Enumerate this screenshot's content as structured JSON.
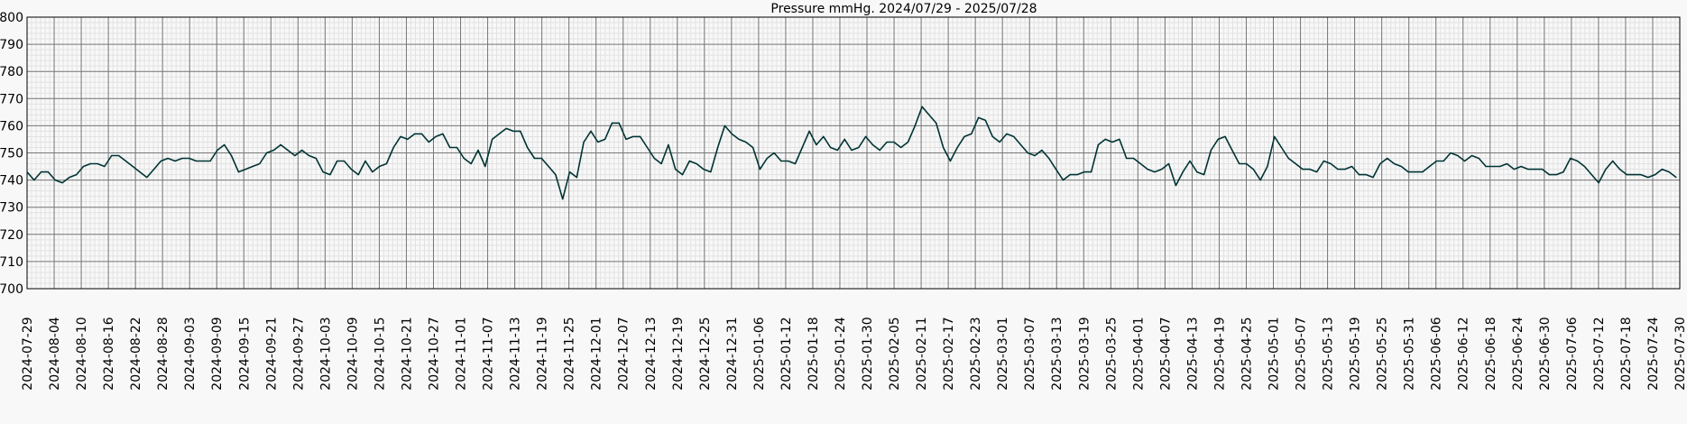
{
  "chart_data": {
    "type": "line",
    "title": "Pressure mmHg. 2024/07/29 - 2025/07/28",
    "xlabel": "",
    "ylabel": "",
    "ylim": [
      700,
      800
    ],
    "yticks": [
      700,
      710,
      720,
      730,
      740,
      750,
      760,
      770,
      780,
      790,
      800
    ],
    "grid": true,
    "line_color": "#003333",
    "x_tick_labels": [
      "2024-07-29",
      "2024-08-04",
      "2024-08-10",
      "2024-08-16",
      "2024-08-22",
      "2024-08-28",
      "2024-09-03",
      "2024-09-09",
      "2024-09-15",
      "2024-09-21",
      "2024-09-27",
      "2024-10-03",
      "2024-10-09",
      "2024-10-15",
      "2024-10-21",
      "2024-10-27",
      "2024-11-01",
      "2024-11-07",
      "2024-11-13",
      "2024-11-19",
      "2024-11-25",
      "2024-12-01",
      "2024-12-07",
      "2024-12-13",
      "2024-12-19",
      "2024-12-25",
      "2024-12-31",
      "2025-01-06",
      "2025-01-12",
      "2025-01-18",
      "2025-01-24",
      "2025-01-30",
      "2025-02-05",
      "2025-02-11",
      "2025-02-17",
      "2025-02-23",
      "2025-03-01",
      "2025-03-07",
      "2025-03-13",
      "2025-03-19",
      "2025-03-25",
      "2025-04-01",
      "2025-04-07",
      "2025-04-13",
      "2025-04-19",
      "2025-04-25",
      "2025-05-01",
      "2025-05-07",
      "2025-05-13",
      "2025-05-19",
      "2025-05-25",
      "2025-05-31",
      "2025-06-06",
      "2025-06-12",
      "2025-06-18",
      "2025-06-24",
      "2025-06-30",
      "2025-07-06",
      "2025-07-12",
      "2025-07-18",
      "2025-07-24",
      "2025-07-30"
    ],
    "series": [
      {
        "values": [
          [
            0,
            743
          ],
          [
            1,
            740
          ],
          [
            2,
            743
          ],
          [
            3,
            743
          ],
          [
            4,
            740
          ],
          [
            5,
            739
          ],
          [
            6,
            741
          ],
          [
            7,
            742
          ],
          [
            8,
            745
          ],
          [
            9,
            746
          ],
          [
            10,
            746
          ],
          [
            11,
            745
          ],
          [
            12,
            749
          ],
          [
            13,
            749
          ],
          [
            14,
            747
          ],
          [
            15,
            745
          ],
          [
            16,
            743
          ],
          [
            17,
            741
          ],
          [
            18,
            744
          ],
          [
            19,
            747
          ],
          [
            20,
            748
          ],
          [
            21,
            747
          ],
          [
            22,
            748
          ],
          [
            23,
            748
          ],
          [
            24,
            747
          ],
          [
            25,
            747
          ],
          [
            26,
            747
          ],
          [
            27,
            751
          ],
          [
            28,
            753
          ],
          [
            29,
            749
          ],
          [
            30,
            743
          ],
          [
            31,
            744
          ],
          [
            32,
            745
          ],
          [
            33,
            746
          ],
          [
            34,
            750
          ],
          [
            35,
            751
          ],
          [
            36,
            753
          ],
          [
            37,
            751
          ],
          [
            38,
            749
          ],
          [
            39,
            751
          ],
          [
            40,
            749
          ],
          [
            41,
            748
          ],
          [
            42,
            743
          ],
          [
            43,
            742
          ],
          [
            44,
            747
          ],
          [
            45,
            747
          ],
          [
            46,
            744
          ],
          [
            47,
            742
          ],
          [
            48,
            747
          ],
          [
            49,
            743
          ],
          [
            50,
            745
          ],
          [
            51,
            746
          ],
          [
            52,
            752
          ],
          [
            53,
            756
          ],
          [
            54,
            755
          ],
          [
            55,
            757
          ],
          [
            56,
            757
          ],
          [
            57,
            754
          ],
          [
            58,
            756
          ],
          [
            59,
            757
          ],
          [
            60,
            752
          ],
          [
            61,
            752
          ],
          [
            62,
            748
          ],
          [
            63,
            746
          ],
          [
            64,
            751
          ],
          [
            65,
            745
          ],
          [
            66,
            755
          ],
          [
            67,
            757
          ],
          [
            68,
            759
          ],
          [
            69,
            758
          ],
          [
            70,
            758
          ],
          [
            71,
            752
          ],
          [
            72,
            748
          ],
          [
            73,
            748
          ],
          [
            74,
            745
          ],
          [
            75,
            742
          ],
          [
            76,
            733
          ],
          [
            77,
            743
          ],
          [
            78,
            741
          ],
          [
            79,
            754
          ],
          [
            80,
            758
          ],
          [
            81,
            754
          ],
          [
            82,
            755
          ],
          [
            83,
            761
          ],
          [
            84,
            761
          ],
          [
            85,
            755
          ],
          [
            86,
            756
          ],
          [
            87,
            756
          ],
          [
            88,
            752
          ],
          [
            89,
            748
          ],
          [
            90,
            746
          ],
          [
            91,
            753
          ],
          [
            92,
            744
          ],
          [
            93,
            742
          ],
          [
            94,
            747
          ],
          [
            95,
            746
          ],
          [
            96,
            744
          ],
          [
            97,
            743
          ],
          [
            98,
            752
          ],
          [
            99,
            760
          ],
          [
            100,
            757
          ],
          [
            101,
            755
          ],
          [
            102,
            754
          ],
          [
            103,
            752
          ],
          [
            104,
            744
          ],
          [
            105,
            748
          ],
          [
            106,
            750
          ],
          [
            107,
            747
          ],
          [
            108,
            747
          ],
          [
            109,
            746
          ],
          [
            110,
            752
          ],
          [
            111,
            758
          ],
          [
            112,
            753
          ],
          [
            113,
            756
          ],
          [
            114,
            752
          ],
          [
            115,
            751
          ],
          [
            116,
            755
          ],
          [
            117,
            751
          ],
          [
            118,
            752
          ],
          [
            119,
            756
          ],
          [
            120,
            753
          ],
          [
            121,
            751
          ],
          [
            122,
            754
          ],
          [
            123,
            754
          ],
          [
            124,
            752
          ],
          [
            125,
            754
          ],
          [
            126,
            760
          ],
          [
            127,
            767
          ],
          [
            128,
            764
          ],
          [
            129,
            761
          ],
          [
            130,
            752
          ],
          [
            131,
            747
          ],
          [
            132,
            752
          ],
          [
            133,
            756
          ],
          [
            134,
            757
          ],
          [
            135,
            763
          ],
          [
            136,
            762
          ],
          [
            137,
            756
          ],
          [
            138,
            754
          ],
          [
            139,
            757
          ],
          [
            140,
            756
          ],
          [
            141,
            753
          ],
          [
            142,
            750
          ],
          [
            143,
            749
          ],
          [
            144,
            751
          ],
          [
            145,
            748
          ],
          [
            146,
            744
          ],
          [
            147,
            740
          ],
          [
            148,
            742
          ],
          [
            149,
            742
          ],
          [
            150,
            743
          ],
          [
            151,
            743
          ],
          [
            152,
            753
          ],
          [
            153,
            755
          ],
          [
            154,
            754
          ],
          [
            155,
            755
          ],
          [
            156,
            748
          ],
          [
            157,
            748
          ],
          [
            158,
            746
          ],
          [
            159,
            744
          ],
          [
            160,
            743
          ],
          [
            161,
            744
          ],
          [
            162,
            746
          ],
          [
            163,
            738
          ],
          [
            164,
            743
          ],
          [
            165,
            747
          ],
          [
            166,
            743
          ],
          [
            167,
            742
          ],
          [
            168,
            751
          ],
          [
            169,
            755
          ],
          [
            170,
            756
          ],
          [
            171,
            751
          ],
          [
            172,
            746
          ],
          [
            173,
            746
          ],
          [
            174,
            744
          ],
          [
            175,
            740
          ],
          [
            176,
            745
          ],
          [
            177,
            756
          ],
          [
            178,
            752
          ],
          [
            179,
            748
          ],
          [
            180,
            746
          ],
          [
            181,
            744
          ],
          [
            182,
            744
          ],
          [
            183,
            743
          ],
          [
            184,
            747
          ],
          [
            185,
            746
          ],
          [
            186,
            744
          ],
          [
            187,
            744
          ],
          [
            188,
            745
          ],
          [
            189,
            742
          ],
          [
            190,
            742
          ],
          [
            191,
            741
          ],
          [
            192,
            746
          ],
          [
            193,
            748
          ],
          [
            194,
            746
          ],
          [
            195,
            745
          ],
          [
            196,
            743
          ],
          [
            197,
            743
          ],
          [
            198,
            743
          ],
          [
            199,
            745
          ],
          [
            200,
            747
          ],
          [
            201,
            747
          ],
          [
            202,
            750
          ],
          [
            203,
            749
          ],
          [
            204,
            747
          ],
          [
            205,
            749
          ],
          [
            206,
            748
          ],
          [
            207,
            745
          ],
          [
            208,
            745
          ],
          [
            209,
            745
          ],
          [
            210,
            746
          ],
          [
            211,
            744
          ],
          [
            212,
            745
          ],
          [
            213,
            744
          ],
          [
            214,
            744
          ],
          [
            215,
            744
          ],
          [
            216,
            742
          ],
          [
            217,
            742
          ],
          [
            218,
            743
          ],
          [
            219,
            748
          ],
          [
            220,
            747
          ],
          [
            221,
            745
          ],
          [
            222,
            742
          ],
          [
            223,
            739
          ],
          [
            224,
            744
          ],
          [
            225,
            747
          ],
          [
            226,
            744
          ],
          [
            227,
            742
          ],
          [
            228,
            742
          ],
          [
            229,
            742
          ],
          [
            230,
            741
          ],
          [
            231,
            742
          ],
          [
            232,
            744
          ],
          [
            233,
            743
          ],
          [
            234,
            741
          ]
        ]
      }
    ]
  }
}
